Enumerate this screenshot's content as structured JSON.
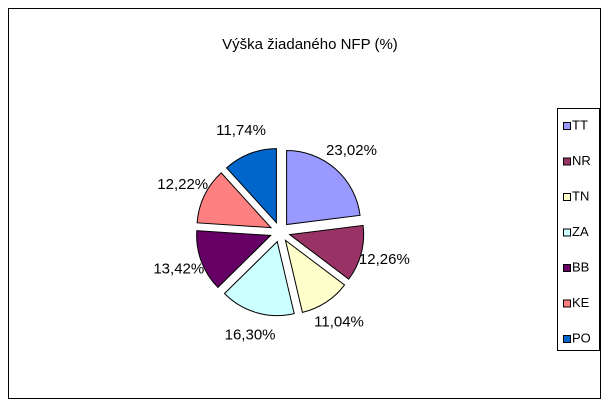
{
  "chart_data": {
    "type": "pie",
    "title": "Výška žiadaného NFP (%)",
    "categories": [
      "TT",
      "NR",
      "TN",
      "ZA",
      "BB",
      "KE",
      "PO"
    ],
    "values": [
      23.02,
      12.26,
      11.04,
      16.3,
      13.42,
      12.22,
      11.74
    ],
    "value_labels": [
      "23,02%",
      "12,26%",
      "11,04%",
      "16,30%",
      "13,42%",
      "12,22%",
      "11,74%"
    ],
    "colors": [
      "#9999ff",
      "#993366",
      "#ffffcc",
      "#ccffff",
      "#660066",
      "#ff8080",
      "#0066cc"
    ],
    "legend": "right"
  }
}
